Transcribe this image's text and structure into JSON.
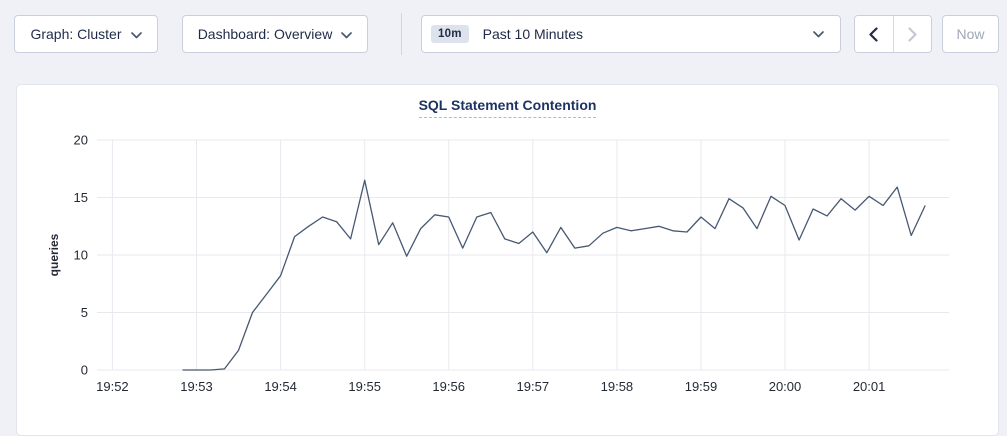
{
  "toolbar": {
    "graph_dropdown": {
      "label": "Graph: Cluster"
    },
    "dashboard_dropdown": {
      "label": "Dashboard: Overview"
    },
    "time_range": {
      "badge": "10m",
      "label": "Past 10 Minutes"
    },
    "now_label": "Now"
  },
  "chart_data": {
    "type": "line",
    "title": "SQL Statement Contention",
    "xlabel": "",
    "ylabel": "queries",
    "ylim": [
      0,
      20
    ],
    "y_ticks": [
      0,
      5,
      10,
      15,
      20
    ],
    "x_ticks": [
      "19:52",
      "19:53",
      "19:54",
      "19:55",
      "19:56",
      "19:57",
      "19:58",
      "19:59",
      "20:00",
      "20:01"
    ],
    "x_domain": [
      "19:51:49",
      "20:01:57"
    ],
    "x_start": "19:52:50",
    "x_interval_seconds": 10,
    "grid": true,
    "legend": "none",
    "line_color": "#475872",
    "grid_color": "#e8e9ee",
    "series": [
      {
        "name": "queries",
        "values": [
          0,
          0,
          0,
          0.1,
          1.7,
          5.0,
          6.6,
          8.2,
          11.6,
          12.5,
          13.3,
          12.9,
          11.4,
          16.5,
          10.9,
          12.8,
          9.9,
          12.3,
          13.5,
          13.3,
          10.6,
          13.3,
          13.7,
          11.4,
          11.0,
          12.0,
          10.2,
          12.4,
          10.6,
          10.8,
          11.9,
          12.4,
          12.1,
          12.3,
          12.5,
          12.1,
          12.0,
          13.3,
          12.3,
          14.9,
          14.1,
          12.3,
          15.1,
          14.3,
          11.3,
          14.0,
          13.4,
          14.9,
          13.9,
          15.1,
          14.3,
          15.9,
          11.7,
          14.3
        ]
      }
    ]
  }
}
